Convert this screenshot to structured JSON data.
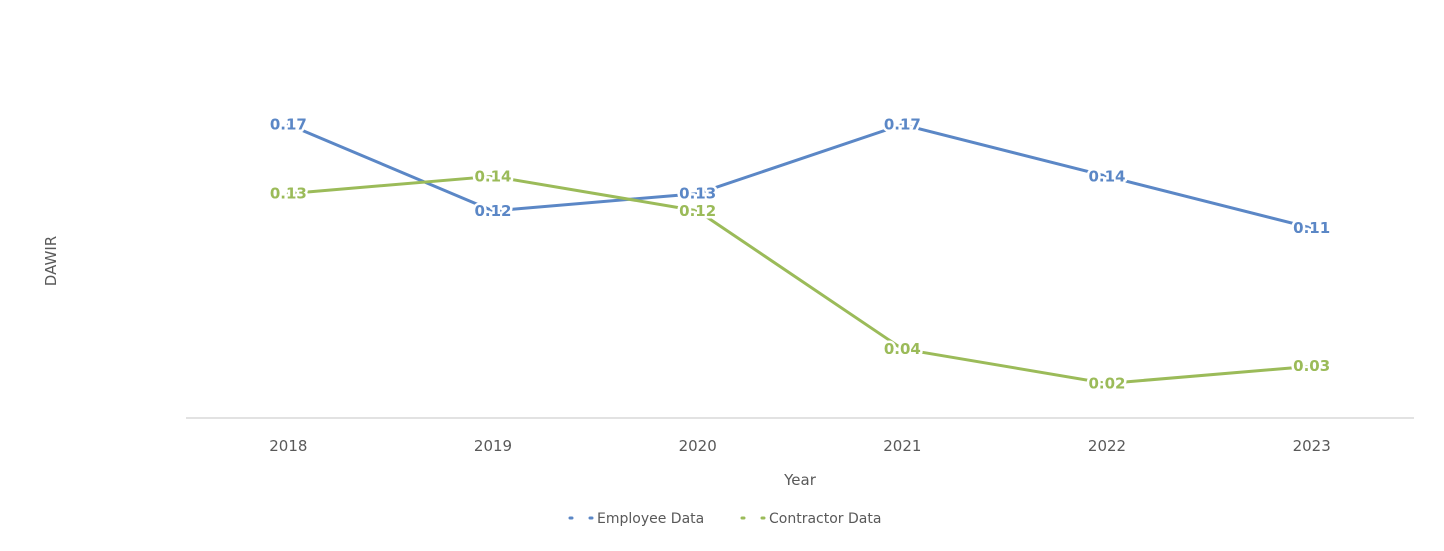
{
  "chart_data": {
    "type": "line",
    "x": [
      "2018",
      "2019",
      "2020",
      "2021",
      "2022",
      "2023"
    ],
    "xlabel": "Year",
    "ylabel": "DAWIR",
    "ylim": [
      0,
      0.19
    ],
    "grid": false,
    "legend_position": "bottom",
    "series": [
      {
        "name": "Employee Data",
        "color": "#5b87c6",
        "values": [
          0.17,
          0.12,
          0.13,
          0.17,
          0.14,
          0.11
        ],
        "labels": [
          "0.17",
          "0.12",
          "0.13",
          "0.17",
          "0.14",
          "0.11"
        ]
      },
      {
        "name": "Contractor Data",
        "color": "#9bbb59",
        "values": [
          0.13,
          0.14,
          0.12,
          0.04,
          0.02,
          0.03
        ],
        "labels": [
          "0.13",
          "0.14",
          "0.12",
          "0.04",
          "0.02",
          "0.03"
        ]
      }
    ]
  }
}
